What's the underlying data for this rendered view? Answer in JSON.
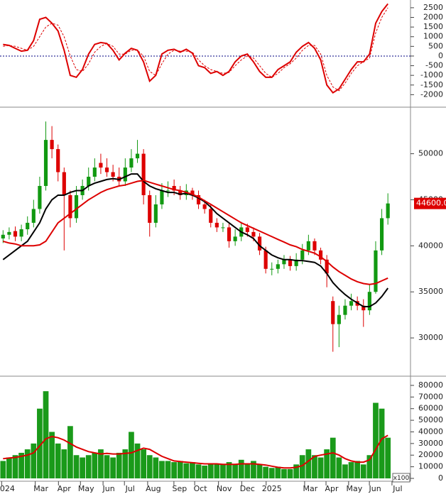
{
  "chart_data": [
    {
      "type": "line",
      "xlim": [
        -0.5,
        66.7
      ],
      "ylim": [
        -2610,
        2900
      ],
      "yticks": [
        -2000,
        -1500,
        -1000,
        -500,
        0,
        500,
        1000,
        1500,
        2000,
        2500
      ],
      "reference_line": 0,
      "series": [
        {
          "color": "#dd0000",
          "style": "solid",
          "values": [
            600,
            550,
            400,
            250,
            300,
            800,
            1900,
            2000,
            1700,
            1300,
            300,
            -1000,
            -1100,
            -700,
            100,
            600,
            700,
            650,
            300,
            -200,
            150,
            400,
            300,
            -300,
            -1300,
            -1000,
            100,
            300,
            350,
            200,
            350,
            150,
            -500,
            -600,
            -900,
            -800,
            -1000,
            -800,
            -300,
            0,
            100,
            -300,
            -800,
            -1100,
            -1100,
            -700,
            -500,
            -300,
            200,
            500,
            700,
            400,
            -200,
            -1500,
            -1900,
            -1700,
            -1200,
            -700,
            -300,
            -300,
            100,
            1700,
            2300,
            2700
          ]
        },
        {
          "color": "#dd0000",
          "style": "dashed",
          "values": [
            500,
            550,
            500,
            400,
            300,
            500,
            1000,
            1500,
            1700,
            1600,
            1000,
            0,
            -700,
            -800,
            -400,
            200,
            500,
            650,
            500,
            100,
            100,
            300,
            300,
            0,
            -800,
            -1000,
            -400,
            100,
            300,
            250,
            250,
            200,
            -200,
            -500,
            -700,
            -800,
            -900,
            -850,
            -500,
            -200,
            0,
            -100,
            -500,
            -900,
            -1100,
            -900,
            -600,
            -400,
            -100,
            300,
            550,
            550,
            100,
            -1000,
            -1600,
            -1800,
            -1400,
            -900,
            -500,
            -300,
            -100,
            1200,
            2000,
            2500
          ]
        }
      ]
    },
    {
      "type": "candlestick",
      "xlim": [
        -0.5,
        66.7
      ],
      "ylim": [
        26000,
        54900
      ],
      "yticks": [
        30000,
        35000,
        40000,
        45000,
        50000
      ],
      "up_color": "#119911",
      "down_color": "#dd0000",
      "open": [
        40800,
        41200,
        41600,
        41000,
        41800,
        42500,
        44000,
        46500,
        51500,
        50500,
        48000,
        45500,
        43000,
        45500,
        46500,
        47500,
        49000,
        48500,
        48000,
        47500,
        47000,
        48500,
        49500,
        50000,
        45500,
        42500,
        44500,
        46000,
        46500,
        46000,
        45500,
        46000,
        45500,
        44500,
        44000,
        42500,
        42000,
        42000,
        40500,
        41000,
        42000,
        41500,
        41000,
        39500,
        37500,
        37500,
        38000,
        38500,
        37800,
        38500,
        39500,
        40500,
        39500,
        38500,
        34000,
        31500,
        32500,
        33500,
        34000,
        33500,
        33000,
        35000,
        39500,
        43000
      ],
      "high": [
        41700,
        42000,
        42100,
        42300,
        43200,
        45000,
        47500,
        53500,
        53000,
        51000,
        48500,
        46000,
        46500,
        47200,
        48500,
        49500,
        50000,
        49500,
        48800,
        48500,
        49500,
        50500,
        51500,
        50500,
        46000,
        45500,
        46800,
        47000,
        47200,
        46500,
        46700,
        46300,
        46000,
        45000,
        44500,
        43000,
        42500,
        42400,
        41800,
        42600,
        42400,
        42000,
        41400,
        39900,
        38200,
        38500,
        39000,
        38900,
        39200,
        40200,
        41200,
        40800,
        39800,
        39000,
        34500,
        33500,
        34200,
        34800,
        34500,
        34200,
        35800,
        40500,
        44000,
        45700
      ],
      "low": [
        40300,
        40700,
        40500,
        40500,
        41200,
        42000,
        43500,
        46000,
        49500,
        47000,
        39500,
        42000,
        42500,
        45000,
        46000,
        47000,
        47800,
        47500,
        47000,
        46500,
        46500,
        48000,
        49000,
        44500,
        41000,
        42000,
        44000,
        45300,
        45500,
        45000,
        45000,
        45000,
        44000,
        43500,
        42000,
        41500,
        41500,
        39800,
        40000,
        40500,
        41000,
        40500,
        39000,
        37000,
        36800,
        37000,
        37500,
        37300,
        37300,
        38000,
        39000,
        39000,
        38000,
        35500,
        28500,
        29000,
        32000,
        33000,
        33000,
        31200,
        32500,
        34800,
        39000,
        42300
      ],
      "close": [
        41200,
        41500,
        41000,
        41800,
        42500,
        44000,
        46500,
        51500,
        50500,
        48000,
        45500,
        43000,
        45500,
        46500,
        47500,
        48500,
        48500,
        48000,
        47500,
        47000,
        48500,
        49500,
        50000,
        45500,
        42500,
        44500,
        46000,
        46000,
        46000,
        45500,
        46000,
        45500,
        44500,
        44000,
        42500,
        42000,
        42000,
        40500,
        41000,
        42000,
        41500,
        41000,
        39500,
        37500,
        37500,
        38000,
        38500,
        37800,
        38500,
        39500,
        40500,
        39500,
        38500,
        37000,
        31500,
        32500,
        33500,
        34000,
        33500,
        33000,
        35000,
        39500,
        43000,
        44600
      ],
      "last_price": {
        "value": 44600,
        "label": "44600.00"
      },
      "series": [
        {
          "color": "#000000",
          "values": [
            38500,
            39000,
            39500,
            40000,
            40500,
            41500,
            42500,
            44000,
            45000,
            45500,
            45500,
            45800,
            46000,
            46000,
            46500,
            46800,
            47000,
            47200,
            47300,
            47200,
            47500,
            47800,
            47800,
            47000,
            46500,
            46200,
            46000,
            45800,
            45800,
            45600,
            45700,
            45500,
            45200,
            44800,
            44200,
            43500,
            43000,
            42500,
            42000,
            41500,
            41200,
            40800,
            40000,
            39500,
            39000,
            38700,
            38500,
            38500,
            38400,
            38400,
            38300,
            38200,
            37800,
            37000,
            36000,
            35300,
            34700,
            34200,
            33800,
            33400,
            33400,
            33800,
            34500,
            35400
          ]
        },
        {
          "color": "#dd0000",
          "values": [
            40500,
            40300,
            40200,
            40000,
            40000,
            40000,
            40100,
            40500,
            41500,
            42500,
            43000,
            43500,
            44000,
            44500,
            45000,
            45400,
            45800,
            46100,
            46300,
            46500,
            46600,
            46800,
            47000,
            47100,
            46900,
            46700,
            46500,
            46300,
            46100,
            46000,
            45800,
            45600,
            45300,
            44900,
            44500,
            44100,
            43700,
            43300,
            42900,
            42500,
            42200,
            41900,
            41600,
            41300,
            41000,
            40700,
            40400,
            40100,
            39900,
            39600,
            39400,
            39200,
            38800,
            38300,
            37700,
            37200,
            36800,
            36400,
            36100,
            35900,
            35800,
            35900,
            36200,
            36500
          ]
        }
      ]
    },
    {
      "type": "bar",
      "xlim": [
        -0.5,
        66.7
      ],
      "ylim": [
        0,
        86700
      ],
      "yticks": [
        0,
        10000,
        20000,
        30000,
        40000,
        50000,
        60000,
        70000,
        80000
      ],
      "unit_label": "x100",
      "color": "#1a9a1a",
      "values": [
        15000,
        18000,
        20000,
        22000,
        25000,
        30000,
        60000,
        75000,
        40000,
        30000,
        25000,
        45000,
        20000,
        18000,
        20000,
        22000,
        25000,
        20000,
        18000,
        22000,
        25000,
        40000,
        30000,
        25000,
        20000,
        18000,
        15000,
        15000,
        14000,
        15000,
        13000,
        14000,
        12000,
        11000,
        13000,
        12000,
        12000,
        14000,
        12000,
        16000,
        12000,
        15000,
        12000,
        10000,
        9000,
        10000,
        8000,
        8000,
        12000,
        20000,
        25000,
        20000,
        18000,
        25000,
        35000,
        18000,
        12000,
        14000,
        15000,
        12000,
        20000,
        65000,
        60000,
        35000
      ],
      "series": [
        {
          "color": "#dd0000",
          "values": [
            17000,
            17500,
            18000,
            19000,
            20000,
            22000,
            28000,
            34000,
            36000,
            35000,
            33000,
            30000,
            27000,
            25000,
            23000,
            22000,
            21000,
            21500,
            21000,
            21000,
            21500,
            22000,
            24000,
            26000,
            25000,
            22000,
            19000,
            17000,
            15000,
            14500,
            14000,
            13500,
            13000,
            12500,
            12500,
            12500,
            12000,
            12000,
            12000,
            12500,
            12500,
            12500,
            12000,
            11500,
            10500,
            9500,
            9000,
            9000,
            9500,
            11000,
            15000,
            19000,
            20000,
            21000,
            22000,
            20000,
            17000,
            15000,
            14000,
            14000,
            16000,
            25000,
            34000,
            37000
          ]
        }
      ],
      "xticks": [
        {
          "value": 0.7,
          "label": "024"
        },
        {
          "value": 6.2,
          "label": "Mar"
        },
        {
          "value": 10,
          "label": "Apr"
        },
        {
          "value": 13.6,
          "label": "May"
        },
        {
          "value": 17.3,
          "label": "Jun"
        },
        {
          "value": 20.8,
          "label": "Jul"
        },
        {
          "value": 24.6,
          "label": "Aug"
        },
        {
          "value": 28.9,
          "label": "Sep"
        },
        {
          "value": 32.3,
          "label": "Oct"
        },
        {
          "value": 36.2,
          "label": "Nov"
        },
        {
          "value": 40,
          "label": "Dec"
        },
        {
          "value": 44,
          "label": "2025"
        },
        {
          "value": 50.3,
          "label": "Mar"
        },
        {
          "value": 53.8,
          "label": "Apr"
        },
        {
          "value": 57.5,
          "label": "May"
        },
        {
          "value": 60.9,
          "label": "Jun"
        },
        {
          "value": 64.6,
          "label": "Jul"
        }
      ]
    }
  ]
}
